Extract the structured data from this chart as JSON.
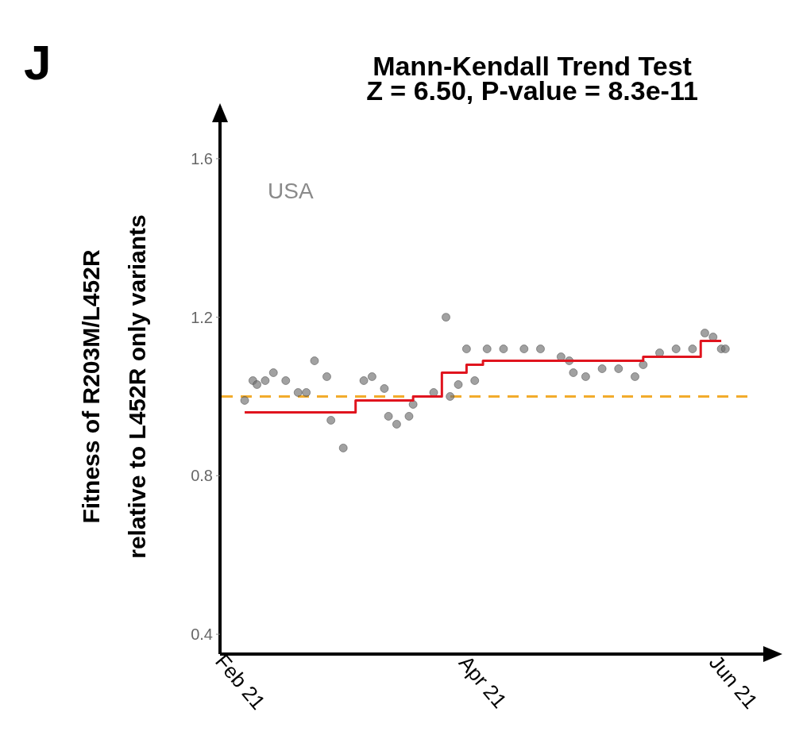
{
  "chart_data": {
    "type": "scatter",
    "title": "Mann-Kendall Trend Test",
    "subtitle": "Z = 6.50,  P-value = 8.3e-11",
    "ylabel": "Fitness of R203M/L452R\nrelative to L452R only variants",
    "annotations": [
      "J",
      "USA"
    ],
    "xlim": [
      "2021-01-27",
      "2021-06-09"
    ],
    "ylim": [
      0.35,
      1.7
    ],
    "xticks": [
      {
        "value": "2021-02-01",
        "label": "Feb 21"
      },
      {
        "value": "2021-04-01",
        "label": "Apr 21"
      },
      {
        "value": "2021-06-01",
        "label": "Jun 21"
      }
    ],
    "yticks": [
      0.4,
      0.8,
      1.2,
      1.6
    ],
    "grid": false,
    "ref_lines": [
      {
        "axis": "y",
        "value": 1.0,
        "color": "#f2ac2c",
        "line_style": "dashed"
      }
    ],
    "series": [
      {
        "marker": "circle",
        "color": "#6e6e6e",
        "x": [
          "2021-02-02",
          "2021-02-04",
          "2021-02-05",
          "2021-02-07",
          "2021-02-09",
          "2021-02-12",
          "2021-02-15",
          "2021-02-17",
          "2021-02-19",
          "2021-02-22",
          "2021-02-23",
          "2021-02-26",
          "2021-03-03",
          "2021-03-05",
          "2021-03-08",
          "2021-03-09",
          "2021-03-11",
          "2021-03-14",
          "2021-03-15",
          "2021-03-20",
          "2021-03-23",
          "2021-03-24",
          "2021-03-26",
          "2021-03-28",
          "2021-03-30",
          "2021-04-02",
          "2021-04-06",
          "2021-04-11",
          "2021-04-15",
          "2021-04-20",
          "2021-04-22",
          "2021-04-23",
          "2021-04-26",
          "2021-04-30",
          "2021-05-04",
          "2021-05-08",
          "2021-05-10",
          "2021-05-14",
          "2021-05-18",
          "2021-05-22",
          "2021-05-25",
          "2021-05-27",
          "2021-05-29",
          "2021-05-30"
        ],
        "values": [
          0.99,
          1.04,
          1.03,
          1.04,
          1.06,
          1.04,
          1.01,
          1.01,
          1.09,
          1.05,
          0.94,
          0.87,
          1.04,
          1.05,
          1.02,
          0.95,
          0.93,
          0.95,
          0.98,
          1.01,
          1.2,
          1.0,
          1.03,
          1.12,
          1.04,
          1.12,
          1.12,
          1.12,
          1.12,
          1.1,
          1.09,
          1.06,
          1.05,
          1.07,
          1.07,
          1.05,
          1.08,
          1.11,
          1.12,
          1.12,
          1.16,
          1.15,
          1.12,
          1.12
        ]
      },
      {
        "type": "step",
        "color": "#e0141e",
        "x": [
          "2021-02-02",
          "2021-03-01",
          "2021-03-15",
          "2021-03-22",
          "2021-03-28",
          "2021-04-01",
          "2021-05-10",
          "2021-05-24",
          "2021-05-29"
        ],
        "values": [
          0.96,
          0.99,
          1.0,
          1.06,
          1.08,
          1.09,
          1.1,
          1.14,
          1.14
        ]
      }
    ]
  }
}
